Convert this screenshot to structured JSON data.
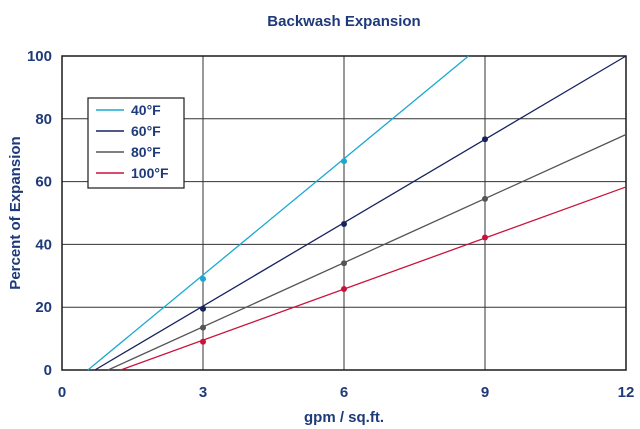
{
  "chart_data": {
    "type": "line",
    "title": "Backwash Expansion",
    "xlabel": "gpm / sq.ft.",
    "ylabel": "Percent of Expansion",
    "xlim": [
      0,
      12
    ],
    "ylim": [
      0,
      100
    ],
    "x_ticks": [
      "0",
      "3",
      "6",
      "9",
      "12"
    ],
    "y_ticks": [
      "0",
      "20",
      "40",
      "60",
      "80",
      "100"
    ],
    "grid": true,
    "legend_position": "top-left",
    "series": [
      {
        "name": "40°F",
        "color": "#1ba8d0",
        "x_intercept": 0.55,
        "x": [
          3,
          6
        ],
        "values": [
          29,
          66.5
        ],
        "line_end": [
          8.65,
          100
        ]
      },
      {
        "name": "60°F",
        "color": "#17235e",
        "x_intercept": 0.7,
        "x": [
          3,
          6,
          9
        ],
        "values": [
          19.5,
          46.5,
          73.5
        ],
        "line_end": [
          12,
          100
        ]
      },
      {
        "name": "80°F",
        "color": "#555555",
        "x_intercept": 0.98,
        "x": [
          3,
          6,
          9
        ],
        "values": [
          13.5,
          34,
          54.5
        ],
        "line_end": [
          12,
          75
        ]
      },
      {
        "name": "100°F",
        "color": "#c8143c",
        "x_intercept": 1.25,
        "x": [
          3,
          6,
          9
        ],
        "values": [
          9,
          25.8,
          42.2
        ],
        "line_end": [
          12,
          58.3
        ]
      }
    ]
  }
}
